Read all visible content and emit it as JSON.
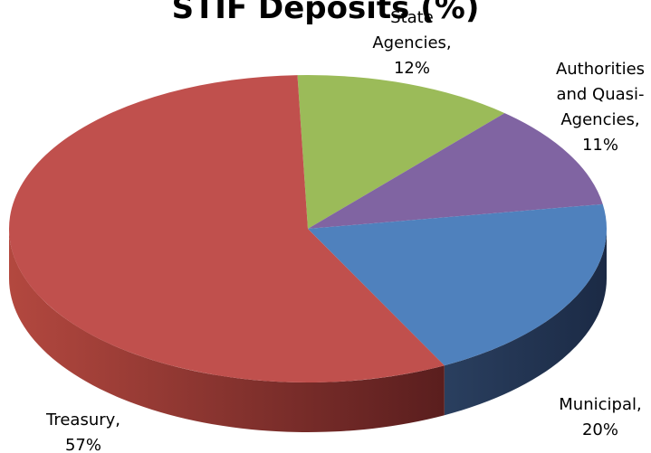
{
  "chart_data": {
    "type": "pie",
    "title": "STIF Deposits (%)",
    "slices": [
      {
        "name": "Treasury",
        "value": 57,
        "label_lines": [
          "Treasury,",
          "57%"
        ],
        "top_color": "#C0504D",
        "side_color_dark": "#5A1E1E",
        "side_color_light": "#B3483F"
      },
      {
        "name": "State Agencies",
        "value": 12,
        "label_lines": [
          "State",
          "Agencies,",
          "12%"
        ],
        "top_color": "#9BBB59",
        "side_color_dark": "#5A7A2E",
        "side_color_light": "#8FB04F"
      },
      {
        "name": "Authorities and Quasi-Agencies",
        "value": 11,
        "label_lines": [
          "Authorities",
          "and Quasi-",
          "Agencies,",
          "11%"
        ],
        "top_color": "#8064A2",
        "side_color_dark": "#4A3A63",
        "side_color_light": "#7A5E9A"
      },
      {
        "name": "Municipal",
        "value": 20,
        "label_lines": [
          "Municipal,",
          "20%"
        ],
        "top_color": "#4F81BD",
        "side_color_dark": "#1B2A45",
        "side_color_light": "#2A3F5F"
      }
    ],
    "style": "3d-pie",
    "legend": "none"
  }
}
